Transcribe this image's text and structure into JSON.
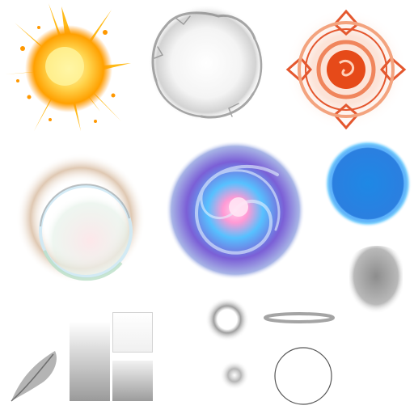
{
  "sheet": {
    "background": "#ffffff",
    "sprites": [
      {
        "name": "fire-burst",
        "colors": [
          "#fff176",
          "#ffb300",
          "#ff8f00"
        ]
      },
      {
        "name": "smoke-ring",
        "colors": [
          "#8a8a8a",
          "#e6e6e6"
        ]
      },
      {
        "name": "magic-seal",
        "colors": [
          "#e4572e",
          "#f3a37e"
        ]
      },
      {
        "name": "halo-ring",
        "colors": [
          "#c49a72",
          "#cfe9f5",
          "#b9dfc7"
        ]
      },
      {
        "name": "vortex-swirl",
        "colors": [
          "#7b5fd6",
          "#56c1ff",
          "#ff9ad5"
        ]
      },
      {
        "name": "blue-energy-ring",
        "colors": [
          "#1e88e5",
          "#82d3ff"
        ]
      },
      {
        "name": "gray-arch-glow",
        "colors": [
          "#8d8d8d"
        ]
      },
      {
        "name": "feather-streak",
        "colors": [
          "#7d7d7d"
        ]
      },
      {
        "name": "gradient-strip-tall",
        "colors": [
          "#ffffff",
          "#9a9a9a"
        ]
      },
      {
        "name": "gradient-square-top",
        "colors": [
          "#ffffff",
          "#e0e0e0"
        ]
      },
      {
        "name": "gradient-square-bottom",
        "colors": [
          "#f2f2f2",
          "#9c9c9c"
        ]
      },
      {
        "name": "soft-ring-small",
        "colors": [
          "#9e9e9e"
        ]
      },
      {
        "name": "flat-ellipse-ring",
        "colors": [
          "#9a9a9a"
        ]
      },
      {
        "name": "soft-dot",
        "colors": [
          "#b5b5b5"
        ]
      },
      {
        "name": "thin-circle-outline",
        "colors": [
          "#555555"
        ]
      }
    ]
  }
}
